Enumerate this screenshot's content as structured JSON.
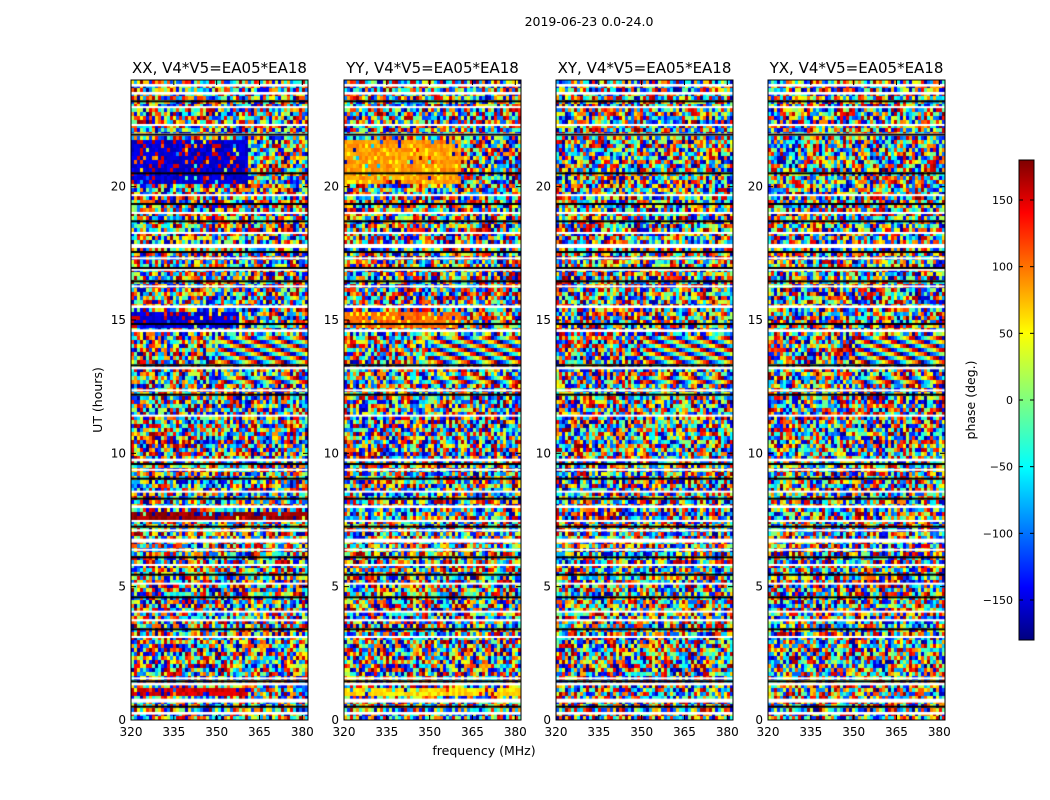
{
  "chart_data": {
    "type": "heatmap",
    "suptitle": "2019-06-23 0.0-24.0",
    "xlabel": "frequency (MHz)",
    "ylabel": "UT (hours)",
    "xlim": [
      320,
      382
    ],
    "ylim": [
      0,
      24
    ],
    "xticks": [
      320,
      335,
      350,
      365,
      380
    ],
    "yticks": [
      0,
      5,
      10,
      15,
      20
    ],
    "panels": [
      {
        "title": "XX, V4*V5=EA05*EA18",
        "coherent_bands": [
          {
            "y0": 20.15,
            "y1": 21.75,
            "x0": 320,
            "x1": 361,
            "value": -150,
            "alt": 150
          },
          {
            "y0": 14.75,
            "y1": 15.25,
            "x0": 320,
            "x1": 358,
            "value": -150,
            "alt": 150
          },
          {
            "y0": 0.85,
            "y1": 1.2,
            "x0": 320,
            "x1": 361,
            "value": 150,
            "alt": -150
          },
          {
            "y0": 7.55,
            "y1": 7.8,
            "x0": 320,
            "x1": 382,
            "value": 170,
            "alt": -170
          }
        ]
      },
      {
        "title": "YY, V4*V5=EA05*EA18",
        "coherent_bands": [
          {
            "y0": 20.15,
            "y1": 21.75,
            "x0": 320,
            "x1": 361,
            "value": 80,
            "alt": 45
          },
          {
            "y0": 14.75,
            "y1": 15.25,
            "x0": 320,
            "x1": 361,
            "value": 100,
            "alt": 45
          },
          {
            "y0": 0.85,
            "y1": 1.2,
            "x0": 320,
            "x1": 382,
            "value": 60,
            "alt": 40
          }
        ]
      },
      {
        "title": "XY, V4*V5=EA05*EA18",
        "coherent_bands": []
      },
      {
        "title": "YX, V4*V5=EA05*EA18",
        "coherent_bands": []
      }
    ],
    "fringe_bands_ut": [
      [
        13.4,
        14.45
      ],
      [
        12.55,
        12.95
      ]
    ],
    "flagged_gaps_ut": [
      [
        0.2,
        0.3
      ],
      [
        0.65,
        0.8
      ],
      [
        1.3,
        1.4
      ],
      [
        1.55,
        1.6
      ],
      [
        3.1,
        3.15
      ],
      [
        3.7,
        3.78
      ],
      [
        4.05,
        4.1
      ],
      [
        5.1,
        5.15
      ],
      [
        5.8,
        5.85
      ],
      [
        6.35,
        6.42
      ],
      [
        6.65,
        6.8
      ],
      [
        7.1,
        7.15
      ],
      [
        7.45,
        7.5
      ],
      [
        7.95,
        8.05
      ],
      [
        8.55,
        8.6
      ],
      [
        9.35,
        9.42
      ],
      [
        9.7,
        9.8
      ],
      [
        11.4,
        11.45
      ],
      [
        12.35,
        12.4
      ],
      [
        13.15,
        13.25
      ],
      [
        14.55,
        14.65
      ],
      [
        15.45,
        15.55
      ],
      [
        16.25,
        16.3
      ],
      [
        16.85,
        16.92
      ],
      [
        17.3,
        17.35
      ],
      [
        17.7,
        17.85
      ],
      [
        18.25,
        18.3
      ],
      [
        19.0,
        19.05
      ],
      [
        19.65,
        19.72
      ],
      [
        21.9,
        22.0
      ],
      [
        22.3,
        22.35
      ],
      [
        22.95,
        23.02
      ],
      [
        23.45,
        23.55
      ],
      [
        23.75,
        23.85
      ]
    ],
    "thin_dark_lines_ut": [
      0.5,
      1.45,
      3.4,
      4.6,
      5.45,
      6.1,
      7.25,
      8.3,
      9.05,
      9.6,
      12.2,
      13.3,
      14.85,
      16.45,
      16.95,
      17.55,
      18.7,
      19.35,
      20.5,
      21.95,
      23.2
    ],
    "colorbar": {
      "label": "phase (deg.)",
      "range": [
        -180,
        180
      ],
      "ticks": [
        -150,
        -100,
        -50,
        0,
        50,
        100,
        150
      ],
      "tick_labels": [
        "−150",
        "−100",
        "−50",
        "0",
        "50",
        "100",
        "150"
      ],
      "colormap": "jet"
    }
  }
}
